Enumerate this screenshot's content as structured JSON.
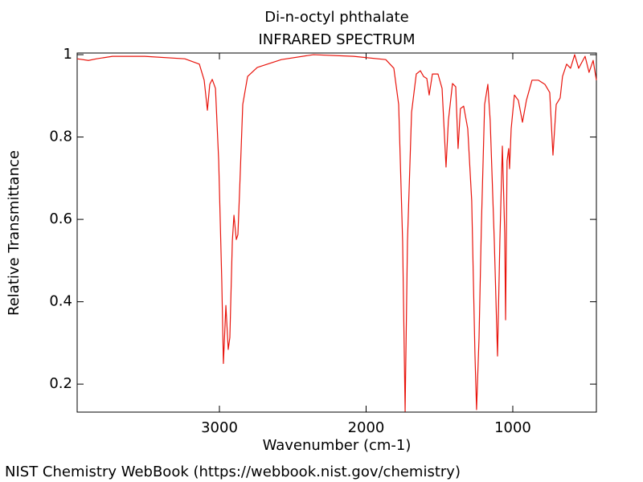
{
  "chart_data": {
    "type": "line",
    "title": "Di-n-octyl phthalate",
    "subtitle": "INFRARED SPECTRUM",
    "x_label": "Wavenumber (cm-1)",
    "y_label": "Relative Transmittance",
    "color": "#e8140c",
    "xlim": [
      3970,
      430
    ],
    "ylim": [
      0.132,
      1.004
    ],
    "xticks": [
      3000,
      2000,
      1000
    ],
    "yticks": [
      0.2,
      0.4,
      0.6,
      0.8,
      1
    ],
    "x": [
      3970,
      3893,
      3838,
      3729,
      3510,
      3236,
      3137,
      3104,
      3082,
      3066,
      3049,
      3027,
      3005,
      2984,
      2973,
      2956,
      2940,
      2929,
      2912,
      2901,
      2885,
      2874,
      2863,
      2841,
      2808,
      2742,
      2578,
      2359,
      2085,
      1866,
      1811,
      1778,
      1751,
      1734,
      1718,
      1690,
      1658,
      1630,
      1608,
      1586,
      1570,
      1548,
      1510,
      1482,
      1455,
      1439,
      1411,
      1389,
      1373,
      1357,
      1335,
      1307,
      1280,
      1258,
      1247,
      1230,
      1214,
      1192,
      1170,
      1154,
      1126,
      1104,
      1088,
      1071,
      1055,
      1049,
      1039,
      1028,
      1022,
      1011,
      989,
      962,
      934,
      907,
      869,
      825,
      781,
      748,
      726,
      704,
      677,
      661,
      633,
      606,
      578,
      551,
      507,
      480,
      452,
      430
    ],
    "values": [
      0.99,
      0.986,
      0.99,
      0.996,
      0.996,
      0.99,
      0.977,
      0.938,
      0.865,
      0.928,
      0.94,
      0.918,
      0.742,
      0.45,
      0.25,
      0.391,
      0.284,
      0.313,
      0.547,
      0.61,
      0.551,
      0.563,
      0.664,
      0.879,
      0.947,
      0.969,
      0.988,
      1.0,
      0.996,
      0.988,
      0.967,
      0.879,
      0.547,
      0.134,
      0.547,
      0.86,
      0.953,
      0.961,
      0.947,
      0.942,
      0.902,
      0.953,
      0.953,
      0.918,
      0.727,
      0.84,
      0.93,
      0.922,
      0.772,
      0.869,
      0.875,
      0.82,
      0.645,
      0.274,
      0.138,
      0.313,
      0.586,
      0.879,
      0.928,
      0.84,
      0.547,
      0.268,
      0.547,
      0.778,
      0.567,
      0.356,
      0.742,
      0.772,
      0.723,
      0.82,
      0.902,
      0.889,
      0.836,
      0.889,
      0.938,
      0.938,
      0.928,
      0.908,
      0.756,
      0.879,
      0.895,
      0.947,
      0.977,
      0.967,
      1.0,
      0.967,
      0.996,
      0.957,
      0.986,
      0.938
    ]
  },
  "footer": "NIST Chemistry WebBook (https://webbook.nist.gov/chemistry)"
}
